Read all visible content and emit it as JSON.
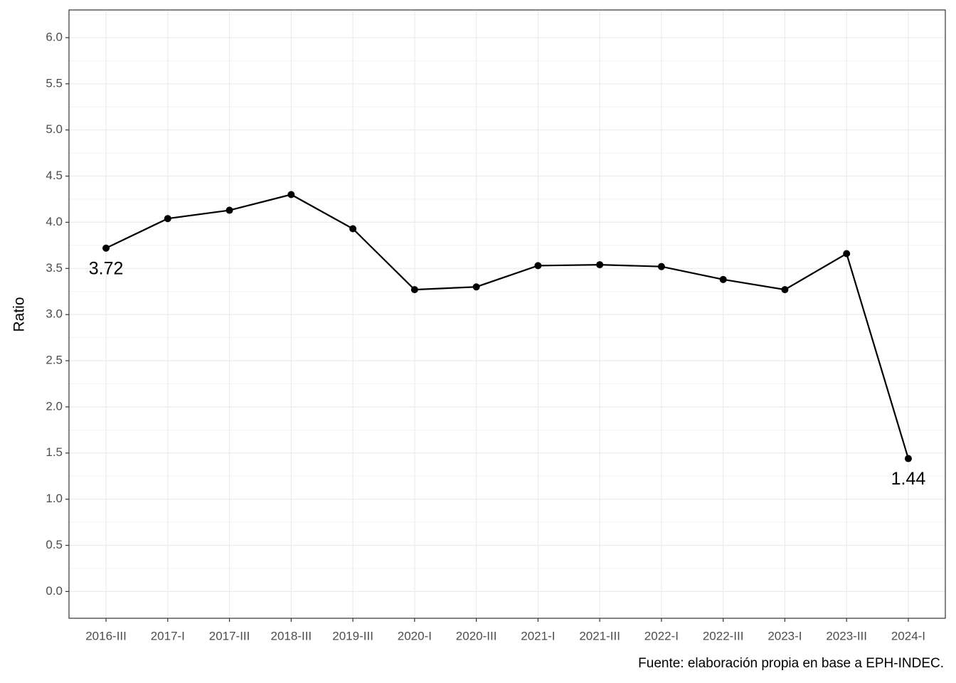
{
  "chart_data": {
    "type": "line",
    "y_label": "Ratio",
    "caption": "Fuente: elaboración propia en base a EPH-INDEC.",
    "categories": [
      "2016-III",
      "2017-I",
      "2017-III",
      "2018-III",
      "2019-III",
      "2020-I",
      "2020-III",
      "2021-I",
      "2021-III",
      "2022-I",
      "2022-III",
      "2023-I",
      "2023-III",
      "2024-I"
    ],
    "values": [
      3.72,
      4.04,
      4.13,
      4.3,
      3.93,
      3.27,
      3.3,
      3.53,
      3.54,
      3.52,
      3.38,
      3.27,
      3.66,
      1.44
    ],
    "color": "#000000",
    "data_labels": "first-last",
    "ylim": [
      -0.29,
      6.3
    ],
    "yticks": [
      {
        "value": 0,
        "label": "0.0"
      },
      0.5,
      {
        "value": 1,
        "label": "1.0"
      },
      1.5,
      {
        "value": 2,
        "label": "2.0"
      },
      2.5,
      {
        "value": 3,
        "label": "3.0"
      },
      3.5,
      {
        "value": 4,
        "label": "4.0"
      },
      4.5,
      {
        "value": 5,
        "label": "5.0"
      },
      5.5,
      {
        "value": 6,
        "label": "6.0"
      }
    ],
    "yminor": [
      0.25,
      0.75,
      1.25,
      1.75,
      2.25,
      2.75,
      3.25,
      3.75,
      4.25,
      4.75,
      5.25,
      5.75,
      6.25
    ],
    "grid": true
  }
}
